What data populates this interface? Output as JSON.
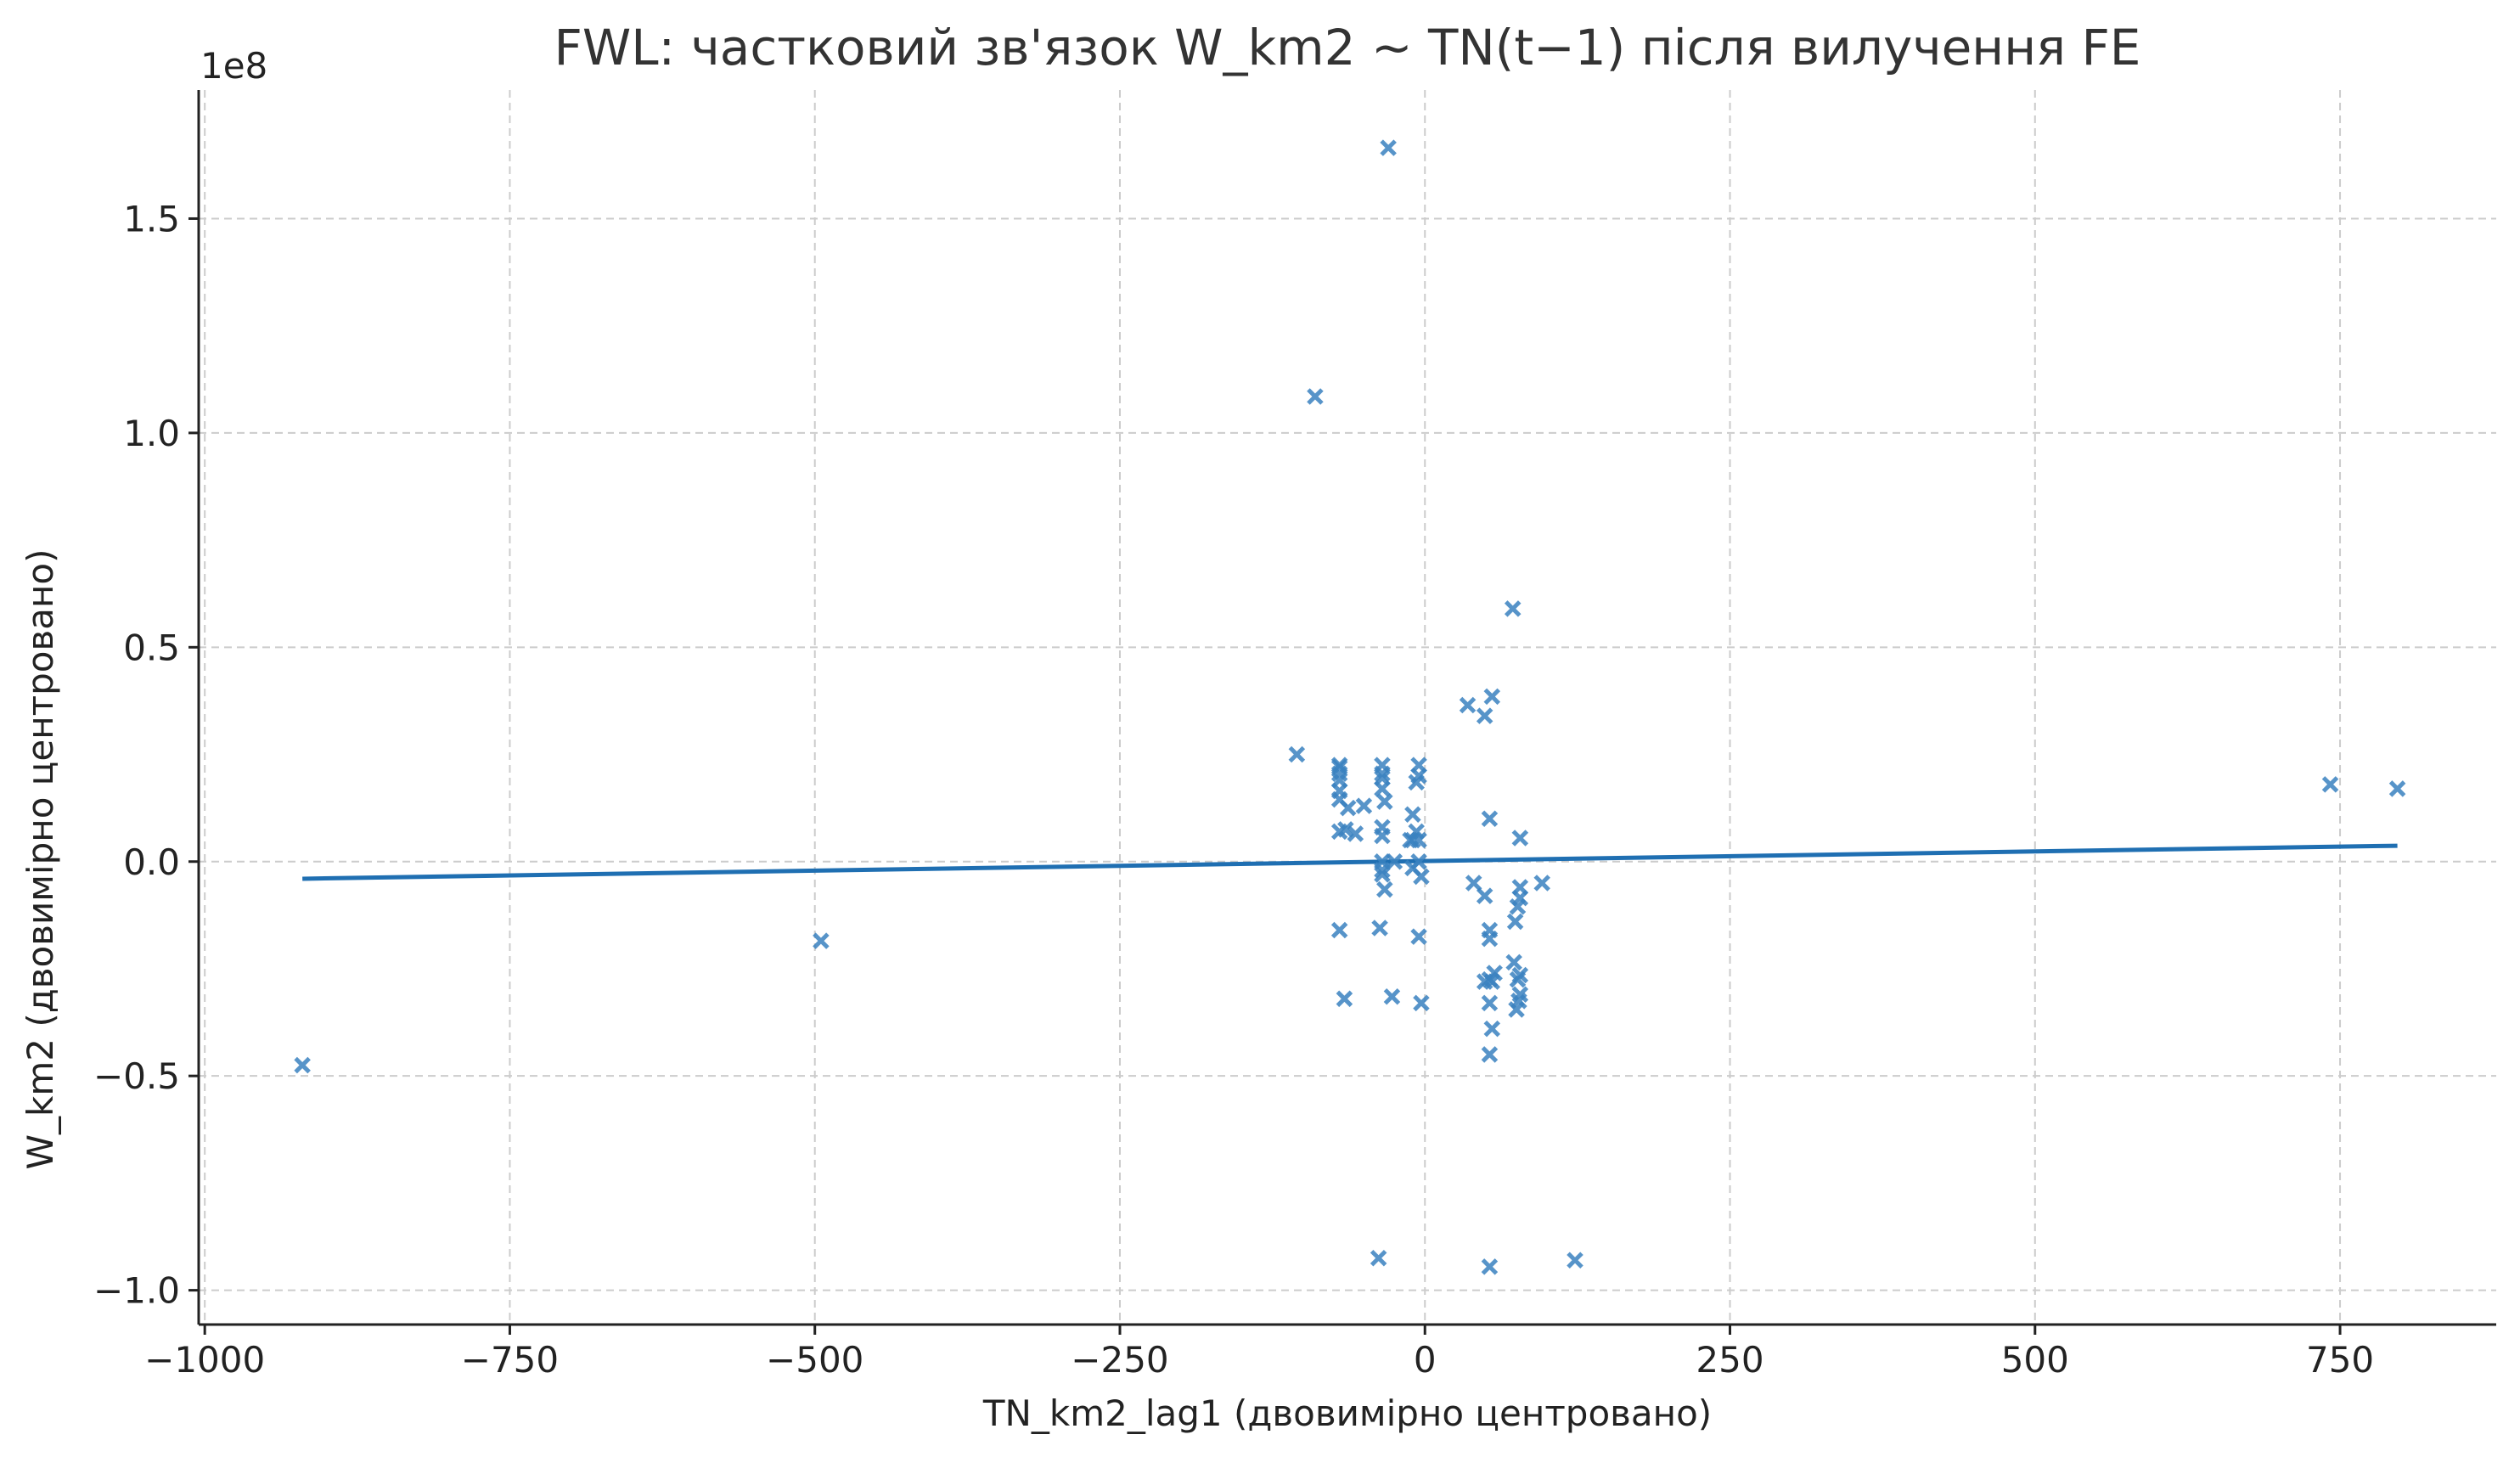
{
  "chart_data": {
    "type": "scatter",
    "title": "FWL: частковий зв'язок W_km2 ~ TN(t−1) після вилучення FE",
    "xlabel": "TN_km2_lag1 (двовимірно центровано)",
    "ylabel": "W_km2 (двовимірно центровано)",
    "y_multiplier_label": "1e8",
    "xlim": [
      -1005,
      878
    ],
    "ylim": [
      -1.08,
      1.8
    ],
    "x_ticks": [
      -1000,
      -750,
      -500,
      -250,
      0,
      250,
      500,
      750
    ],
    "x_tick_labels": [
      "−1000",
      "−750",
      "−500",
      "−250",
      "0",
      "250",
      "500",
      "750"
    ],
    "y_ticks": [
      -1.0,
      -0.5,
      0.0,
      0.5,
      1.0,
      1.5
    ],
    "y_tick_labels": [
      "−1.0",
      "−0.5",
      "0.0",
      "0.5",
      "1.0",
      "1.5"
    ],
    "grid": true,
    "marker": "x",
    "colors": {
      "points": "#3a82c0",
      "fit_line": "#1f6fb2"
    },
    "points": [
      [
        -920,
        -0.475
      ],
      [
        -495,
        -0.185
      ],
      [
        -90,
        1.085
      ],
      [
        -105,
        0.25
      ],
      [
        -30,
        1.665
      ],
      [
        -38,
        -0.925
      ],
      [
        53,
        -0.945
      ],
      [
        123,
        -0.93
      ],
      [
        72,
        0.59
      ],
      [
        35,
        0.365
      ],
      [
        55,
        0.385
      ],
      [
        49,
        0.34
      ],
      [
        -70,
        0.225
      ],
      [
        -70,
        0.22
      ],
      [
        -70,
        0.205
      ],
      [
        -70,
        0.19
      ],
      [
        -70,
        0.165
      ],
      [
        -70,
        0.145
      ],
      [
        -63,
        0.125
      ],
      [
        -50,
        0.13
      ],
      [
        -70,
        0.07
      ],
      [
        -65,
        0.075
      ],
      [
        -57,
        0.065
      ],
      [
        -70,
        -0.16
      ],
      [
        -66,
        -0.32
      ],
      [
        -35,
        0.225
      ],
      [
        -35,
        0.205
      ],
      [
        -35,
        0.195
      ],
      [
        -35,
        0.17
      ],
      [
        -33,
        0.14
      ],
      [
        -35,
        0.08
      ],
      [
        -35,
        0.06
      ],
      [
        -35,
        0.0
      ],
      [
        -35,
        -0.02
      ],
      [
        -35,
        -0.03
      ],
      [
        -33,
        -0.065
      ],
      [
        -37,
        -0.155
      ],
      [
        -27,
        -0.315
      ],
      [
        -25,
        0.0
      ],
      [
        -5,
        0.225
      ],
      [
        -5,
        0.2
      ],
      [
        -7,
        0.185
      ],
      [
        -10,
        0.11
      ],
      [
        -7,
        0.07
      ],
      [
        -10,
        0.05
      ],
      [
        -5,
        0.05
      ],
      [
        -12,
        0.05
      ],
      [
        -5,
        0.0
      ],
      [
        -10,
        -0.015
      ],
      [
        -3,
        -0.035
      ],
      [
        -5,
        -0.175
      ],
      [
        -3,
        -0.33
      ],
      [
        53,
        0.1
      ],
      [
        40,
        -0.05
      ],
      [
        49,
        -0.08
      ],
      [
        53,
        -0.16
      ],
      [
        53,
        -0.18
      ],
      [
        57,
        -0.26
      ],
      [
        53,
        -0.275
      ],
      [
        49,
        -0.28
      ],
      [
        55,
        -0.28
      ],
      [
        53,
        -0.33
      ],
      [
        55,
        -0.39
      ],
      [
        53,
        -0.45
      ],
      [
        78,
        0.055
      ],
      [
        78,
        -0.06
      ],
      [
        78,
        -0.085
      ],
      [
        76,
        -0.105
      ],
      [
        74,
        -0.14
      ],
      [
        73,
        -0.235
      ],
      [
        78,
        -0.265
      ],
      [
        76,
        -0.275
      ],
      [
        78,
        -0.31
      ],
      [
        77,
        -0.325
      ],
      [
        75,
        -0.345
      ],
      [
        96,
        -0.05
      ],
      [
        742,
        0.18
      ],
      [
        797,
        0.17
      ]
    ],
    "fit_line": {
      "x": [
        -920,
        797
      ],
      "y": [
        -0.04,
        0.037
      ]
    }
  }
}
